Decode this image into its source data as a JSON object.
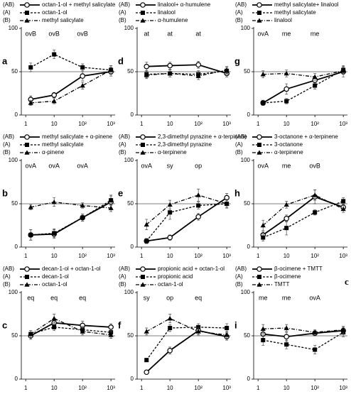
{
  "chart_data": [
    {
      "type": "line",
      "panel_label": "a",
      "xscale": "log",
      "xlim": [
        0.7,
        1400
      ],
      "xticks": [
        1,
        10,
        {
          "value": 100,
          "label": "10²"
        },
        {
          "value": 1000,
          "label": "10³"
        }
      ],
      "ylim": [
        0,
        100
      ],
      "yticks": [
        0,
        50,
        100
      ],
      "reference_line": 50,
      "x": [
        1.5,
        10,
        100,
        1000
      ],
      "annotations": [
        "ovB",
        "ovB",
        "ovB"
      ],
      "series": [
        {
          "legend_key": "(AB)",
          "name": "octan-1-ol + methyl salicylate",
          "color": "#000000",
          "dash": "solid",
          "marker": "open-circle",
          "values": [
            18,
            23,
            45,
            50
          ],
          "errors": [
            4,
            3,
            5,
            5
          ]
        },
        {
          "legend_key": "(A)",
          "name": "octan-1-ol",
          "color": "#000000",
          "dash": "dashed",
          "marker": "square",
          "values": [
            55,
            70,
            55,
            52
          ],
          "errors": [
            5,
            5,
            4,
            5
          ]
        },
        {
          "legend_key": "(B)",
          "name": "methyl salicylate",
          "color": "#000000",
          "dash": "dashdot",
          "marker": "triangle",
          "values": [
            14,
            16,
            34,
            52
          ],
          "errors": [
            3,
            3,
            4,
            5
          ]
        }
      ]
    },
    {
      "type": "line",
      "panel_label": "b",
      "xscale": "log",
      "xlim": [
        0.7,
        1400
      ],
      "xticks": [
        1,
        10,
        {
          "value": 100,
          "label": "10²"
        },
        {
          "value": 1000,
          "label": "10³"
        }
      ],
      "ylim": [
        0,
        100
      ],
      "yticks": [
        0,
        50,
        100
      ],
      "reference_line": 50,
      "x": [
        1.5,
        10,
        100,
        1000
      ],
      "annotations": [
        "ovA",
        "ovA",
        "ovA"
      ],
      "series": [
        {
          "legend_key": "(AB)",
          "name": "methyl salicylate + α-pinene",
          "color": "#000000",
          "dash": "solid",
          "marker": "open-circle",
          "values": [
            14,
            15,
            34,
            52
          ],
          "errors": [
            6,
            5,
            4,
            7
          ]
        },
        {
          "legend_key": "(A)",
          "name": "methyl salicylate",
          "color": "#000000",
          "dash": "dashed",
          "marker": "square",
          "values": [
            14,
            16,
            34,
            54
          ],
          "errors": [
            6,
            5,
            4,
            6
          ]
        },
        {
          "legend_key": "(B)",
          "name": "α-pinene",
          "color": "#000000",
          "dash": "dashdot",
          "marker": "triangle",
          "values": [
            46,
            52,
            48,
            45
          ],
          "errors": [
            3,
            5,
            3,
            4
          ]
        }
      ]
    },
    {
      "type": "line",
      "panel_label": "c",
      "xscale": "log",
      "xlim": [
        0.7,
        1400
      ],
      "xticks": [
        1,
        10,
        {
          "value": 100,
          "label": "10²"
        },
        {
          "value": 1000,
          "label": "10³"
        }
      ],
      "ylim": [
        0,
        100
      ],
      "yticks": [
        0,
        50,
        100
      ],
      "reference_line": 50,
      "x": [
        1.5,
        10,
        100,
        1000
      ],
      "annotations": [
        "eq",
        "eq",
        "eq"
      ],
      "series": [
        {
          "legend_key": "(AB)",
          "name": "decan-1-ol + octan-1-ol",
          "color": "#000000",
          "dash": "solid",
          "marker": "open-circle",
          "values": [
            50,
            65,
            62,
            60
          ],
          "errors": [
            4,
            5,
            5,
            4
          ]
        },
        {
          "legend_key": "(A)",
          "name": "decan-1-ol",
          "color": "#000000",
          "dash": "dashed",
          "marker": "square",
          "values": [
            52,
            60,
            57,
            54
          ],
          "errors": [
            4,
            4,
            4,
            4
          ]
        },
        {
          "legend_key": "(B)",
          "name": "octan-1-ol",
          "color": "#000000",
          "dash": "dashdot",
          "marker": "triangle",
          "values": [
            52,
            70,
            55,
            51
          ],
          "errors": [
            4,
            5,
            4,
            4
          ]
        }
      ]
    },
    {
      "type": "line",
      "panel_label": "d",
      "xscale": "log",
      "xlim": [
        0.7,
        1400
      ],
      "xticks": [
        1,
        10,
        {
          "value": 100,
          "label": "10²"
        },
        {
          "value": 1000,
          "label": "10³"
        }
      ],
      "ylim": [
        0,
        100
      ],
      "yticks": [
        0,
        50,
        100
      ],
      "reference_line": 50,
      "x": [
        1.5,
        10,
        100,
        1000
      ],
      "annotations": [
        "at",
        "at",
        "at"
      ],
      "series": [
        {
          "legend_key": "(AB)",
          "name": "linalool+ α-humulene",
          "color": "#000000",
          "dash": "solid",
          "marker": "open-circle",
          "values": [
            56,
            57,
            58,
            48
          ],
          "errors": [
            5,
            4,
            4,
            4
          ]
        },
        {
          "legend_key": "(A)",
          "name": "linalool",
          "color": "#000000",
          "dash": "dashed",
          "marker": "square",
          "values": [
            47,
            48,
            47,
            51
          ],
          "errors": [
            4,
            4,
            4,
            4
          ]
        },
        {
          "legend_key": "(B)",
          "name": "α-humulene",
          "color": "#000000",
          "dash": "dashdot",
          "marker": "triangle",
          "values": [
            46,
            48,
            45,
            52
          ],
          "errors": [
            4,
            4,
            4,
            4
          ]
        }
      ]
    },
    {
      "type": "line",
      "panel_label": "e",
      "xscale": "log",
      "xlim": [
        0.7,
        1400
      ],
      "xticks": [
        1,
        10,
        {
          "value": 100,
          "label": "10²"
        },
        {
          "value": 1000,
          "label": "10³"
        }
      ],
      "ylim": [
        0,
        100
      ],
      "yticks": [
        0,
        50,
        100
      ],
      "reference_line": 50,
      "x": [
        1.5,
        10,
        100,
        1000
      ],
      "annotations": [
        "ovA",
        "sy",
        "op"
      ],
      "series": [
        {
          "legend_key": "(AB)",
          "name": "2,3-dimethyl pyrazine + α-terpinene",
          "color": "#000000",
          "dash": "solid",
          "marker": "open-circle",
          "values": [
            7,
            11,
            35,
            57
          ],
          "errors": [
            3,
            3,
            4,
            5
          ]
        },
        {
          "legend_key": "(A)",
          "name": "2,3-dimethyl pyrazine",
          "color": "#000000",
          "dash": "dashed",
          "marker": "square",
          "values": [
            7,
            40,
            48,
            50
          ],
          "errors": [
            3,
            8,
            4,
            4
          ]
        },
        {
          "legend_key": "(B)",
          "name": "α-terpinene",
          "color": "#000000",
          "dash": "dashdot",
          "marker": "triangle",
          "values": [
            26,
            49,
            60,
            50
          ],
          "errors": [
            6,
            5,
            7,
            5
          ]
        }
      ]
    },
    {
      "type": "line",
      "panel_label": "f",
      "xscale": "log",
      "xlim": [
        0.7,
        1400
      ],
      "xticks": [
        1,
        10,
        {
          "value": 100,
          "label": "10²"
        },
        {
          "value": 1000,
          "label": "10³"
        }
      ],
      "ylim": [
        0,
        100
      ],
      "yticks": [
        0,
        50,
        100
      ],
      "reference_line": 50,
      "x": [
        1.5,
        10,
        100,
        1000
      ],
      "annotations": [
        "sy",
        "op",
        "eq"
      ],
      "series": [
        {
          "legend_key": "(AB)",
          "name": "propionic acid + octan-1-ol",
          "color": "#000000",
          "dash": "solid",
          "marker": "open-circle",
          "values": [
            8,
            33,
            56,
            49
          ],
          "errors": [
            2,
            4,
            5,
            4
          ]
        },
        {
          "legend_key": "(A)",
          "name": "propionic acid",
          "color": "#000000",
          "dash": "dashed",
          "marker": "square",
          "values": [
            22,
            59,
            60,
            59
          ],
          "errors": [
            2,
            4,
            4,
            5
          ]
        },
        {
          "legend_key": "(B)",
          "name": "octan-1-ol",
          "color": "#000000",
          "dash": "dashdot",
          "marker": "triangle",
          "values": [
            55,
            70,
            55,
            51
          ],
          "errors": [
            4,
            5,
            4,
            4
          ]
        }
      ]
    },
    {
      "type": "line",
      "panel_label": "g",
      "xscale": "log",
      "xlim": [
        0.7,
        1400
      ],
      "xticks": [
        1,
        10,
        {
          "value": 100,
          "label": "10²"
        },
        {
          "value": 1000,
          "label": "10³"
        }
      ],
      "ylim": [
        0,
        100
      ],
      "yticks": [
        0,
        50,
        100
      ],
      "reference_line": 50,
      "x": [
        1.5,
        10,
        100,
        1000
      ],
      "annotations": [
        "ovA",
        "me",
        "me"
      ],
      "series": [
        {
          "legend_key": "(AB)",
          "name": "methyl salicylate+ linalool",
          "color": "#000000",
          "dash": "solid",
          "marker": "open-circle",
          "values": [
            14,
            30,
            40,
            50
          ],
          "errors": [
            3,
            6,
            4,
            6
          ]
        },
        {
          "legend_key": "(A)",
          "name": "methyl salicylate",
          "color": "#000000",
          "dash": "dashed",
          "marker": "square",
          "values": [
            14,
            16,
            34,
            52
          ],
          "errors": [
            3,
            3,
            4,
            5
          ]
        },
        {
          "legend_key": "(B)",
          "name": "linalool",
          "color": "#000000",
          "dash": "dashdot",
          "marker": "triangle",
          "values": [
            47,
            48,
            44,
            51
          ],
          "errors": [
            4,
            4,
            4,
            4
          ]
        }
      ]
    },
    {
      "type": "line",
      "panel_label": "h",
      "xscale": "log",
      "xlim": [
        0.7,
        1400
      ],
      "xticks": [
        1,
        10,
        {
          "value": 100,
          "label": "10²"
        },
        {
          "value": 1000,
          "label": "10³"
        }
      ],
      "ylim": [
        0,
        100
      ],
      "yticks": [
        0,
        50,
        100
      ],
      "reference_line": 50,
      "x": [
        1.5,
        10,
        100,
        1000
      ],
      "annotations": [
        "ovA",
        "me",
        "ovB"
      ],
      "series": [
        {
          "legend_key": "(AB)",
          "name": "3-octanone + α-terpinene",
          "color": "#000000",
          "dash": "solid",
          "marker": "open-circle",
          "values": [
            14,
            33,
            58,
            46
          ],
          "errors": [
            4,
            4,
            8,
            4
          ]
        },
        {
          "legend_key": "(A)",
          "name": "3-octanone",
          "color": "#000000",
          "dash": "dashed",
          "marker": "square",
          "values": [
            11,
            22,
            40,
            53
          ],
          "errors": [
            4,
            8,
            3,
            4
          ]
        },
        {
          "legend_key": "(B)",
          "name": "α-terpinene",
          "color": "#000000",
          "dash": "dashdot",
          "marker": "triangle",
          "values": [
            25,
            49,
            60,
            44
          ],
          "errors": [
            6,
            4,
            6,
            4
          ]
        }
      ]
    },
    {
      "type": "line",
      "panel_label": "i",
      "corner_mark": "c",
      "xscale": "log",
      "xlim": [
        0.7,
        1400
      ],
      "xticks": [
        1,
        10,
        {
          "value": 100,
          "label": "10²"
        },
        {
          "value": 1000,
          "label": "10³"
        }
      ],
      "ylim": [
        0,
        100
      ],
      "yticks": [
        0,
        50,
        100
      ],
      "reference_line": 50,
      "x": [
        1.5,
        10,
        100,
        1000
      ],
      "annotations": [
        "me",
        "me",
        "ovA"
      ],
      "series": [
        {
          "legend_key": "(AB)",
          "name": "β-ocimene + TMTT",
          "color": "#000000",
          "dash": "solid",
          "marker": "open-circle",
          "values": [
            52,
            49,
            53,
            56
          ],
          "errors": [
            5,
            5,
            3,
            4
          ]
        },
        {
          "legend_key": "(A)",
          "name": "β-ocimene",
          "color": "#000000",
          "dash": "dashed",
          "marker": "square",
          "values": [
            45,
            40,
            34,
            54
          ],
          "errors": [
            6,
            5,
            5,
            5
          ]
        },
        {
          "legend_key": "(B)",
          "name": "TMTT",
          "color": "#000000",
          "dash": "dashdot",
          "marker": "triangle",
          "values": [
            58,
            59,
            54,
            57
          ],
          "errors": [
            5,
            4,
            3,
            4
          ]
        }
      ]
    }
  ]
}
